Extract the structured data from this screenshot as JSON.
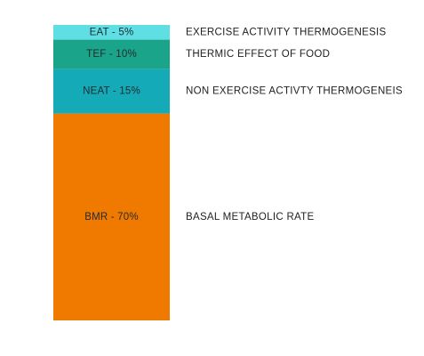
{
  "chart_data": {
    "type": "bar",
    "stacked": true,
    "unit": "%",
    "segments": [
      {
        "short": "EAT",
        "value": 5,
        "label": "EAT - 5%",
        "description": "EXERCISE ACTIVITY THERMOGENESIS",
        "color": "#5fdfe4"
      },
      {
        "short": "TEF",
        "value": 10,
        "label": "TEF - 10%",
        "description": "THERMIC EFFECT OF FOOD",
        "color": "#1aa58a"
      },
      {
        "short": "NEAT",
        "value": 15,
        "label": "NEAT - 15%",
        "description": "NON EXERCISE ACTIVTY THERMOGENEIS",
        "color": "#14aab7"
      },
      {
        "short": "BMR",
        "value": 70,
        "label": "BMR - 70%",
        "description": "BASAL METABOLIC RATE",
        "color": "#f07a00"
      }
    ]
  }
}
